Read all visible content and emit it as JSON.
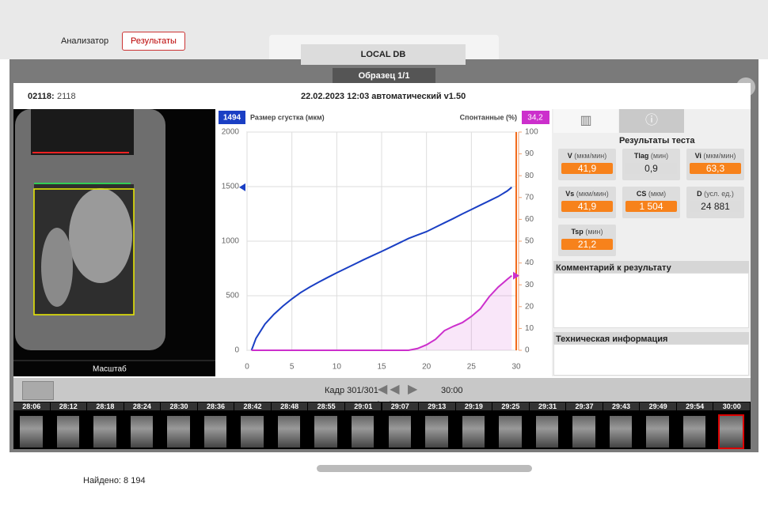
{
  "app": {
    "tabs": [
      "Анализатор",
      "Результаты"
    ],
    "db": "LOCAL DB",
    "sample": "Образец 1/1",
    "found": "Найдено: 8 194"
  },
  "dialog": {
    "sample_id": "02118:",
    "sample_value": "2118",
    "title": "22.02.2023 12:03 автоматический v1.50",
    "scale_label": "Масштаб"
  },
  "chart_data": {
    "type": "line",
    "x": [
      0.5,
      1,
      2,
      3,
      4,
      5,
      6,
      7,
      8,
      9,
      10,
      11,
      12,
      13,
      14,
      15,
      16,
      17,
      18,
      19,
      20,
      21,
      22,
      23,
      24,
      25,
      26,
      27,
      28,
      29,
      29.5
    ],
    "series": [
      {
        "name": "Размер сгустка (мкм)",
        "color": "#1a3fc4",
        "marker": 1494,
        "values": [
          0,
          110,
          240,
          330,
          405,
          471,
          530,
          580,
          625,
          668,
          710,
          750,
          790,
          830,
          868,
          906,
          945,
          985,
          1025,
          1057,
          1087,
          1128,
          1168,
          1208,
          1250,
          1290,
          1330,
          1370,
          1410,
          1460,
          1494
        ]
      },
      {
        "name": "Спонтанные (%)",
        "color": "#cc2fcc",
        "axis": "y2",
        "area": true,
        "marker": {
          "value": 34.2,
          "label": "34,2"
        },
        "values": [
          0,
          0,
          0,
          0,
          0,
          0,
          0,
          0,
          0,
          0,
          0,
          0,
          0,
          0,
          0,
          0,
          0,
          0,
          0,
          0.8,
          2.5,
          5,
          9,
          11,
          12.7,
          15.5,
          19,
          24.6,
          29,
          32.5,
          34.2
        ]
      }
    ],
    "cursor_x": 30,
    "xlim": [
      0,
      30
    ],
    "xticks": [
      0,
      5,
      10,
      15,
      20,
      25,
      30
    ],
    "ylim": [
      0,
      2000
    ],
    "yticks": [
      0,
      500,
      1000,
      1500,
      2000
    ],
    "y2lim": [
      0,
      100
    ],
    "y2ticks": [
      0,
      10,
      20,
      30,
      40,
      50,
      60,
      70,
      80,
      90,
      100
    ],
    "grid": true
  },
  "results": {
    "title": "Результаты теста",
    "tiles": [
      {
        "name": "V",
        "unit": "(мкм/мин)",
        "value": "41,9",
        "color": "#f7821b"
      },
      {
        "name": "Tlag",
        "unit": "(мин)",
        "value": "0,9",
        "color": "#dcdcdc"
      },
      {
        "name": "Vi",
        "unit": "(мкм/мин)",
        "value": "63,3",
        "color": "#f7821b"
      },
      {
        "name": "Vs",
        "unit": "(мкм/мин)",
        "value": "41,9",
        "color": "#f7821b"
      },
      {
        "name": "CS",
        "unit": "(мкм)",
        "value": "1 504",
        "color": "#f7821b"
      },
      {
        "name": "D",
        "unit": "(усл. ед.)",
        "value": "24 881",
        "color": "#dcdcdc"
      },
      {
        "name": "Tsp",
        "unit": "(мин)",
        "value": "21,2",
        "color": "#f7821b"
      }
    ],
    "comment_title": "Комментарий к результату",
    "tech_title": "Техническая информация"
  },
  "timeline": {
    "frame": "Кадр 301/301",
    "time": "30:00",
    "thumbs": [
      "28:06",
      "28:12",
      "28:18",
      "28:24",
      "28:30",
      "28:36",
      "28:42",
      "28:48",
      "28:55",
      "29:01",
      "29:07",
      "29:13",
      "29:19",
      "29:25",
      "29:31",
      "29:37",
      "29:43",
      "29:49",
      "29:54",
      "30:00"
    ]
  }
}
